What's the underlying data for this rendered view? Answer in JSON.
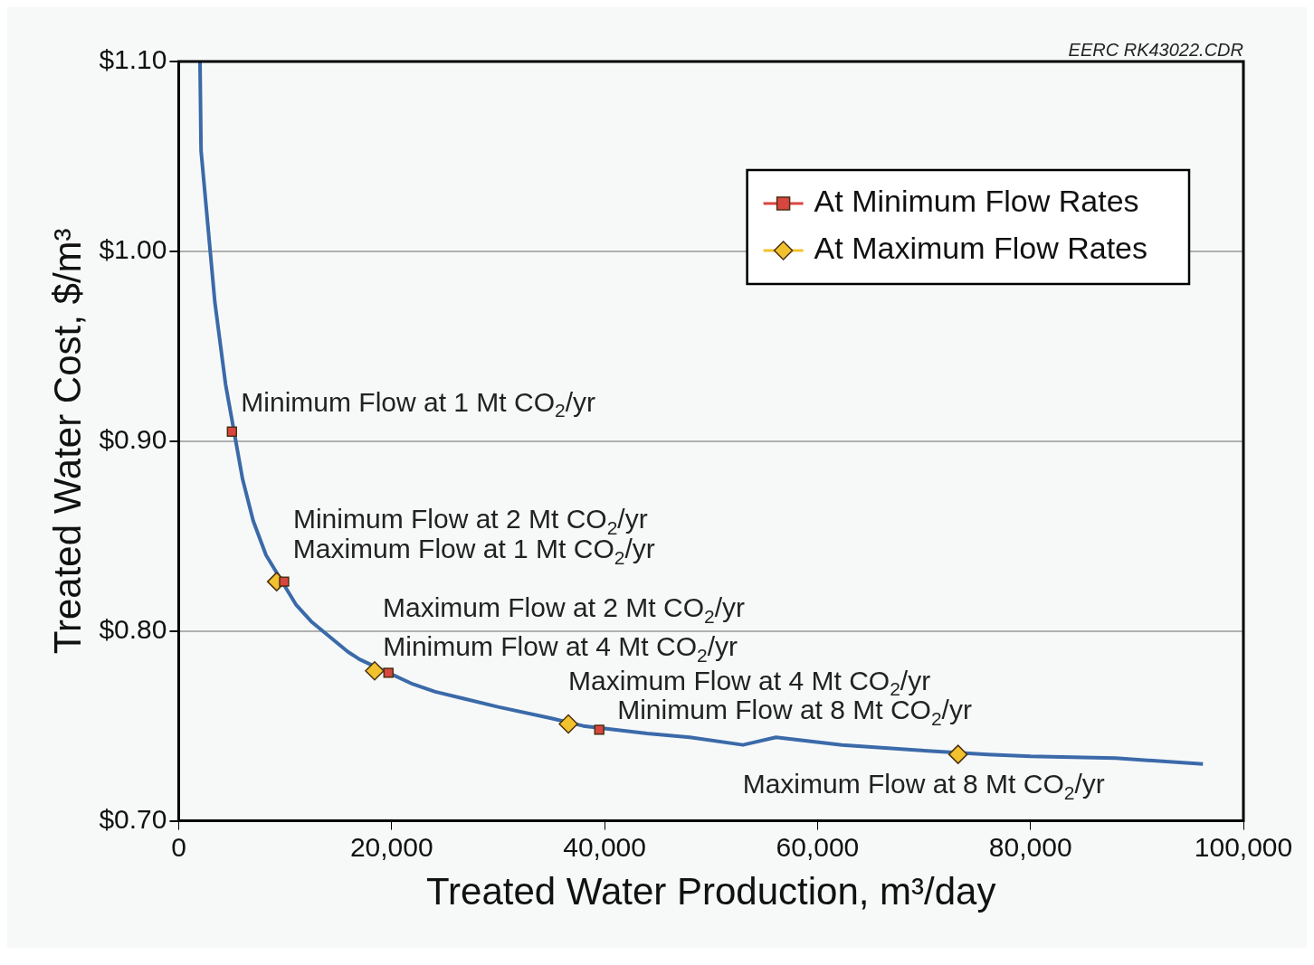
{
  "chart_data": {
    "type": "line",
    "xlabel": "Treated Water Production, m³/day",
    "ylabel": "Treated Water Cost, $/m³",
    "xlim": [
      0,
      100000
    ],
    "ylim": [
      0.7,
      1.1
    ],
    "xticks": [
      0,
      {
        "value": 20000,
        "label": "20,000"
      },
      {
        "value": 40000,
        "label": "40,000"
      },
      {
        "value": 60000,
        "label": "60,000"
      },
      {
        "value": 80000,
        "label": "80,000"
      },
      {
        "value": 100000,
        "label": "100,000"
      }
    ],
    "yticks": [
      {
        "value": 0.7,
        "label": "$0.70"
      },
      {
        "value": 0.8,
        "label": "$0.80"
      },
      {
        "value": 0.9,
        "label": "$0.90"
      },
      {
        "value": 1.0,
        "label": "$1.00"
      },
      {
        "value": 1.1,
        "label": "$1.10"
      }
    ],
    "grid": "y",
    "legend": "top right",
    "series": [
      {
        "type": "line",
        "color": "#3b6aa9",
        "marker": "none",
        "x": [
          2000,
          2100,
          3400,
          4400,
          6000,
          7000,
          8200,
          11000,
          12450,
          15900,
          17000,
          22000,
          24100,
          30000,
          35000,
          38000,
          44000,
          48000,
          53000,
          56100,
          62300,
          70000,
          76000,
          80000,
          88000,
          96200
        ],
        "values": [
          1.1,
          1.053,
          0.973,
          0.93,
          0.88,
          0.858,
          0.84,
          0.814,
          0.805,
          0.789,
          0.785,
          0.772,
          0.768,
          0.76,
          0.754,
          0.75,
          0.746,
          0.744,
          0.74,
          0.744,
          0.74,
          0.737,
          0.735,
          0.734,
          0.733,
          0.73
        ]
      },
      {
        "type": "scatter",
        "name": "At Minimum Flow Rates",
        "color": "#d9453f",
        "marker": "square",
        "x": [
          5000,
          9900,
          19700,
          39500
        ],
        "values": [
          0.905,
          0.826,
          0.778,
          0.748
        ]
      },
      {
        "type": "scatter",
        "name": "At Maximum Flow Rates",
        "color": "#f2c12e",
        "marker": "diamond",
        "x": [
          9200,
          18400,
          36600,
          73200
        ],
        "values": [
          0.826,
          0.779,
          0.751,
          0.735
        ]
      }
    ],
    "annotations": [
      "EERC RK43022.CDR",
      {
        "text": "Minimum Flow at 1 Mt CO$_{2}$/yr",
        "x": 5000,
        "y": 0.905
      },
      {
        "text": "Minimum Flow at 2 Mt CO$_{2}$/yr",
        "x": 9900,
        "y": 0.826
      },
      {
        "text": "Maximum Flow at 1 Mt CO$_{2}$/yr",
        "x": 9200,
        "y": 0.826
      },
      {
        "text": "Maximum Flow at 2 Mt CO$_{2}$/yr",
        "x": 18400,
        "y": 0.779
      },
      {
        "text": "Minimum Flow at 4 Mt CO$_{2}$/yr",
        "x": 19700,
        "y": 0.778
      },
      {
        "text": "Maximum Flow at 4 Mt CO$_{2}$/yr",
        "x": 36600,
        "y": 0.751
      },
      {
        "text": "Minimum Flow at 8 Mt CO$_{2}$/yr",
        "x": 39500,
        "y": 0.748
      },
      {
        "text": "Maximum Flow at 8 Mt CO$_{2}$/yr",
        "x": 73200,
        "y": 0.735
      }
    ]
  }
}
